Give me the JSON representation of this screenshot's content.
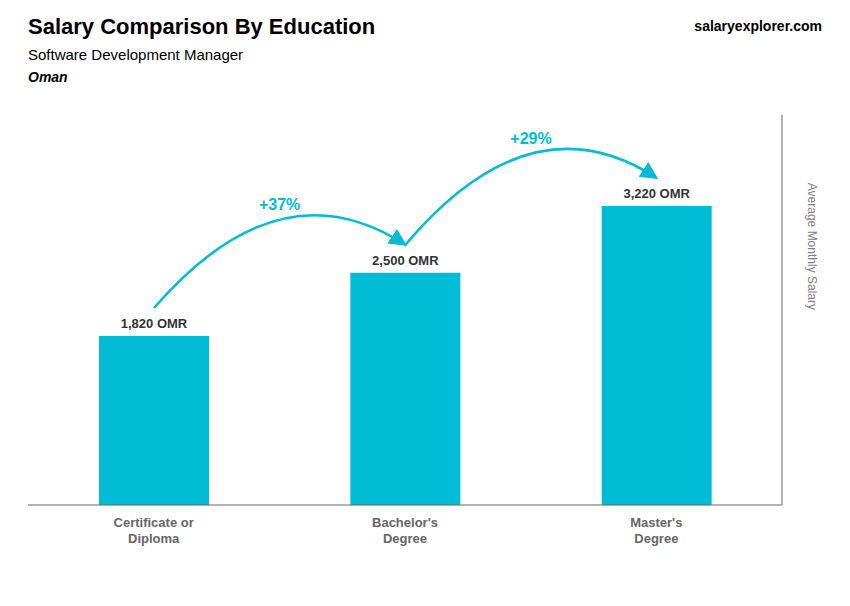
{
  "chart_data": {
    "type": "bar",
    "title": "Salary Comparison By Education",
    "subtitle": "Software Development Manager",
    "country": "Oman",
    "website": "salaryexplorer.com",
    "ylabel": "Average Monthly Salary",
    "categories": [
      "Certificate or\nDiploma",
      "Bachelor's\nDegree",
      "Master's\nDegree"
    ],
    "values": [
      1820,
      2500,
      3220
    ],
    "value_labels": [
      "1,820 OMR",
      "2,500 OMR",
      "3,220 OMR"
    ],
    "pct_changes": [
      "+37%",
      "+29%"
    ],
    "color": "#00bcd4",
    "ylim": [
      0,
      4200
    ],
    "grid": false,
    "tick_labels": "x",
    "data_labels": true
  }
}
